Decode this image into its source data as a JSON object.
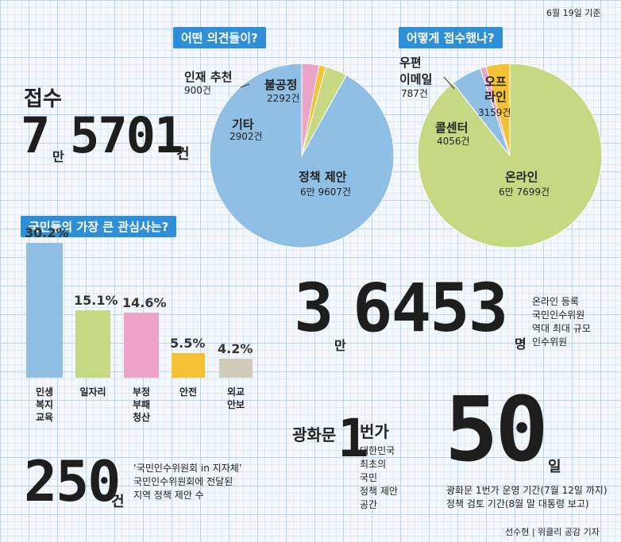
{
  "date_note": "6월 19일 기준",
  "credit": "선수현 | 위클리 공감 기자",
  "receipts": {
    "title": "접수",
    "number_main": "7",
    "man": "만",
    "number_rest": "5701",
    "unit": "건"
  },
  "opinion_tag": "어떤 의견들이?",
  "method_tag": "어떻게 접수했나?",
  "interest_tag": "국민들의 가장 큰 관심사는?",
  "colors": {
    "blue": "#8fbfe4",
    "green": "#c6d982",
    "pink": "#eda3c6",
    "yellow": "#f3c131",
    "gray": "#cfcdb9"
  },
  "chart_data": [
    {
      "type": "pie",
      "title": "어떤 의견들이?",
      "slices": [
        {
          "label": "정책 제안",
          "value_text": "6만 9607건",
          "value": 69607,
          "color": "#8fbfe4"
        },
        {
          "label": "기타",
          "value_text": "2902건",
          "value": 2902,
          "color": "#c6d982"
        },
        {
          "label": "인재 추천",
          "value_text": "900건",
          "value": 900,
          "color": "#f3c131"
        },
        {
          "label": "불공정",
          "value_text": "2292건",
          "value": 2292,
          "color": "#eda3c6"
        }
      ]
    },
    {
      "type": "pie",
      "title": "어떻게 접수했나?",
      "slices": [
        {
          "label": "온라인",
          "value_text": "6만 7699건",
          "value": 67699,
          "color": "#c6d982"
        },
        {
          "label": "콜센터",
          "value_text": "4056건",
          "value": 4056,
          "color": "#8fbfe4"
        },
        {
          "label": "우편 이메일",
          "value_text": "787건",
          "value": 787,
          "color": "#eda3c6"
        },
        {
          "label": "오프 라인",
          "value_text": "3159건",
          "value": 3159,
          "color": "#f3c131"
        }
      ]
    },
    {
      "type": "bar",
      "title": "국민들의 가장 큰 관심사는?",
      "categories": [
        "민생 복지 교육",
        "일자리",
        "부정 부패 청산",
        "안전",
        "외교 안보"
      ],
      "values": [
        30.2,
        15.1,
        14.6,
        5.5,
        4.2
      ],
      "value_labels": [
        "30.2%",
        "15.1%",
        "14.6%",
        "5.5%",
        "4.2%"
      ],
      "colors": [
        "#8fbfe4",
        "#c6d982",
        "#eda3c6",
        "#f3c131",
        "#cfcdb9"
      ]
    }
  ],
  "online_reg": {
    "number_main": "3",
    "man": "만",
    "number_rest": "6453",
    "unit": "명",
    "desc": [
      "온라인 등록",
      "국민인수위원",
      "역대 최대 규모",
      "인수위원"
    ]
  },
  "gwanghwamun": {
    "title": "광화문",
    "num": "1",
    "unit": "번가",
    "desc": [
      "대한민국",
      "최초의",
      "국민",
      "정책 제안",
      "공간"
    ]
  },
  "days50": {
    "number": "50",
    "unit": "일",
    "desc": [
      "광화문 1번가 운영 기간(7월 12일 까지)",
      "정책 검토 기간(8월 말 대통령 보고)"
    ]
  },
  "local250": {
    "number": "250",
    "unit": "건",
    "desc": [
      "‘국민인수위원회 in 지자체’",
      "국민인수위원회에 전달된",
      "지역 정책 제안 수"
    ]
  }
}
